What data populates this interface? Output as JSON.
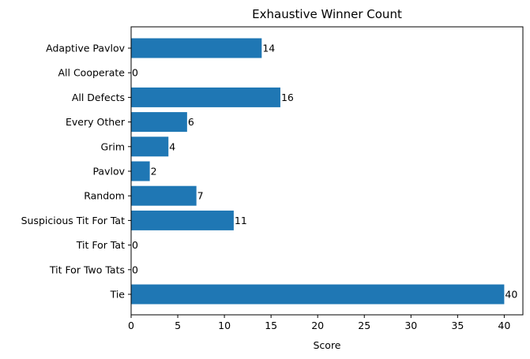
{
  "chart_data": {
    "type": "bar",
    "orientation": "horizontal",
    "title": "Exhaustive Winner Count",
    "xlabel": "Score",
    "ylabel": "",
    "categories": [
      "Adaptive Pavlov",
      "All Cooperate",
      "All Defects",
      "Every Other",
      "Grim",
      "Pavlov",
      "Random",
      "Suspicious Tit For Tat",
      "Tit For Tat",
      "Tit For Two Tats",
      "Tie"
    ],
    "values": [
      14,
      0,
      16,
      6,
      4,
      2,
      7,
      11,
      0,
      0,
      40
    ],
    "xlim": [
      0,
      42
    ],
    "xticks": [
      0,
      5,
      10,
      15,
      20,
      25,
      30,
      35,
      40
    ],
    "grid": false,
    "bar_color": "#1f77b4",
    "data_labels": true
  }
}
